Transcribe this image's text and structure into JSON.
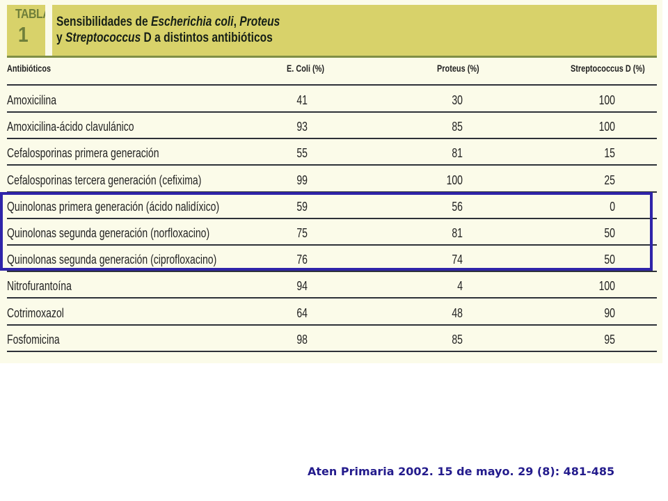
{
  "header": {
    "tabla_label": "TABLA",
    "tabla_number": "1",
    "title_parts": [
      {
        "text": "Sensibilidades de ",
        "italic": false
      },
      {
        "text": "Escherichia coli",
        "italic": true
      },
      {
        "text": ", ",
        "italic": false
      },
      {
        "text": "Proteus",
        "italic": true
      },
      {
        "text": "y ",
        "italic": false
      },
      {
        "text": "Streptococcus",
        "italic": true
      },
      {
        "text": " D a distintos antibióticos",
        "italic": false
      }
    ]
  },
  "table": {
    "headers": [
      "Antibióticos",
      "E. Coli (%)",
      "Proteus (%)",
      "Streptococcus D (%)"
    ],
    "rows": [
      {
        "name": "Amoxicilina",
        "ecoli": "41",
        "proteus": "30",
        "strepto": "100"
      },
      {
        "name": "Amoxicilina-ácido clavulánico",
        "ecoli": "93",
        "proteus": "85",
        "strepto": "100"
      },
      {
        "name": "Cefalosporinas primera generación",
        "ecoli": "55",
        "proteus": "81",
        "strepto": "15"
      },
      {
        "name": "Cefalosporinas tercera generación (cefixima)",
        "ecoli": "99",
        "proteus": "100",
        "strepto": "25"
      },
      {
        "name": "Quinolonas primera generación (ácido nalidíxico)",
        "ecoli": "59",
        "proteus": "56",
        "strepto": "0"
      },
      {
        "name": "Quinolonas segunda generación (norfloxacino)",
        "ecoli": "75",
        "proteus": "81",
        "strepto": "50"
      },
      {
        "name": "Quinolonas segunda generación (ciprofloxacino)",
        "ecoli": "76",
        "proteus": "74",
        "strepto": "50"
      },
      {
        "name": "Nitrofurantoína",
        "ecoli": "94",
        "proteus": "4",
        "strepto": "100"
      },
      {
        "name": "Cotrimoxazol",
        "ecoli": "64",
        "proteus": "48",
        "strepto": "90"
      },
      {
        "name": "Fosfomicina",
        "ecoli": "98",
        "proteus": "85",
        "strepto": "95"
      }
    ]
  },
  "citation": "Aten Primaria 2002. 15 de mayo. 29 (8): 481-485",
  "colors": {
    "header_band": "#d8d26a",
    "label_text": "#6f7f3a",
    "highlight_border": "#2f24a9",
    "citation_text": "#231b8c"
  }
}
